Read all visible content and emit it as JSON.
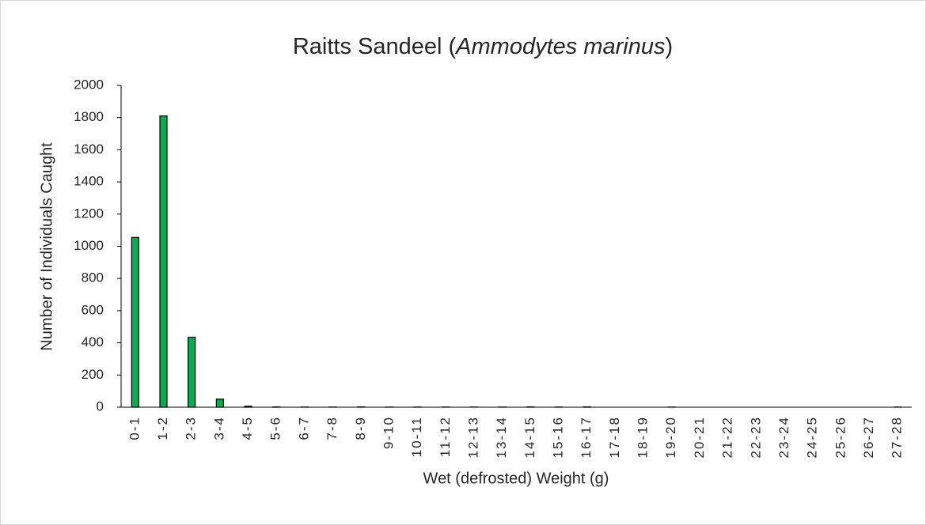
{
  "chart_data": {
    "type": "bar",
    "title": [
      "Raitts Sandeel (",
      "Ammodytes marinus",
      ")"
    ],
    "x_label": "Wet (defrosted) Weight (g)",
    "y_label": "Number of Individuals Caught",
    "categories": [
      "0-1",
      "1-2",
      "2-3",
      "3-4",
      "4-5",
      "5-6",
      "6-7",
      "7-8",
      "8-9",
      "9-10",
      "10-11",
      "11-12",
      "12-13",
      "13-14",
      "14-15",
      "15-16",
      "16-17",
      "17-18",
      "18-19",
      "19-20",
      "20-21",
      "21-22",
      "22-23",
      "23-24",
      "24-25",
      "25-26",
      "26-27",
      "27-28"
    ],
    "values": [
      1055,
      1810,
      435,
      50,
      6,
      2,
      1,
      1,
      2,
      1,
      1,
      1,
      1,
      1,
      2,
      1,
      2,
      0,
      0,
      1,
      0,
      0,
      0,
      0,
      0,
      0,
      0,
      1
    ],
    "color": "#00b050",
    "ylim": [
      0,
      2000
    ],
    "yticks": [
      0,
      200,
      400,
      600,
      800,
      1000,
      1200,
      1400,
      1600,
      1800,
      2000
    ],
    "grid": false
  }
}
